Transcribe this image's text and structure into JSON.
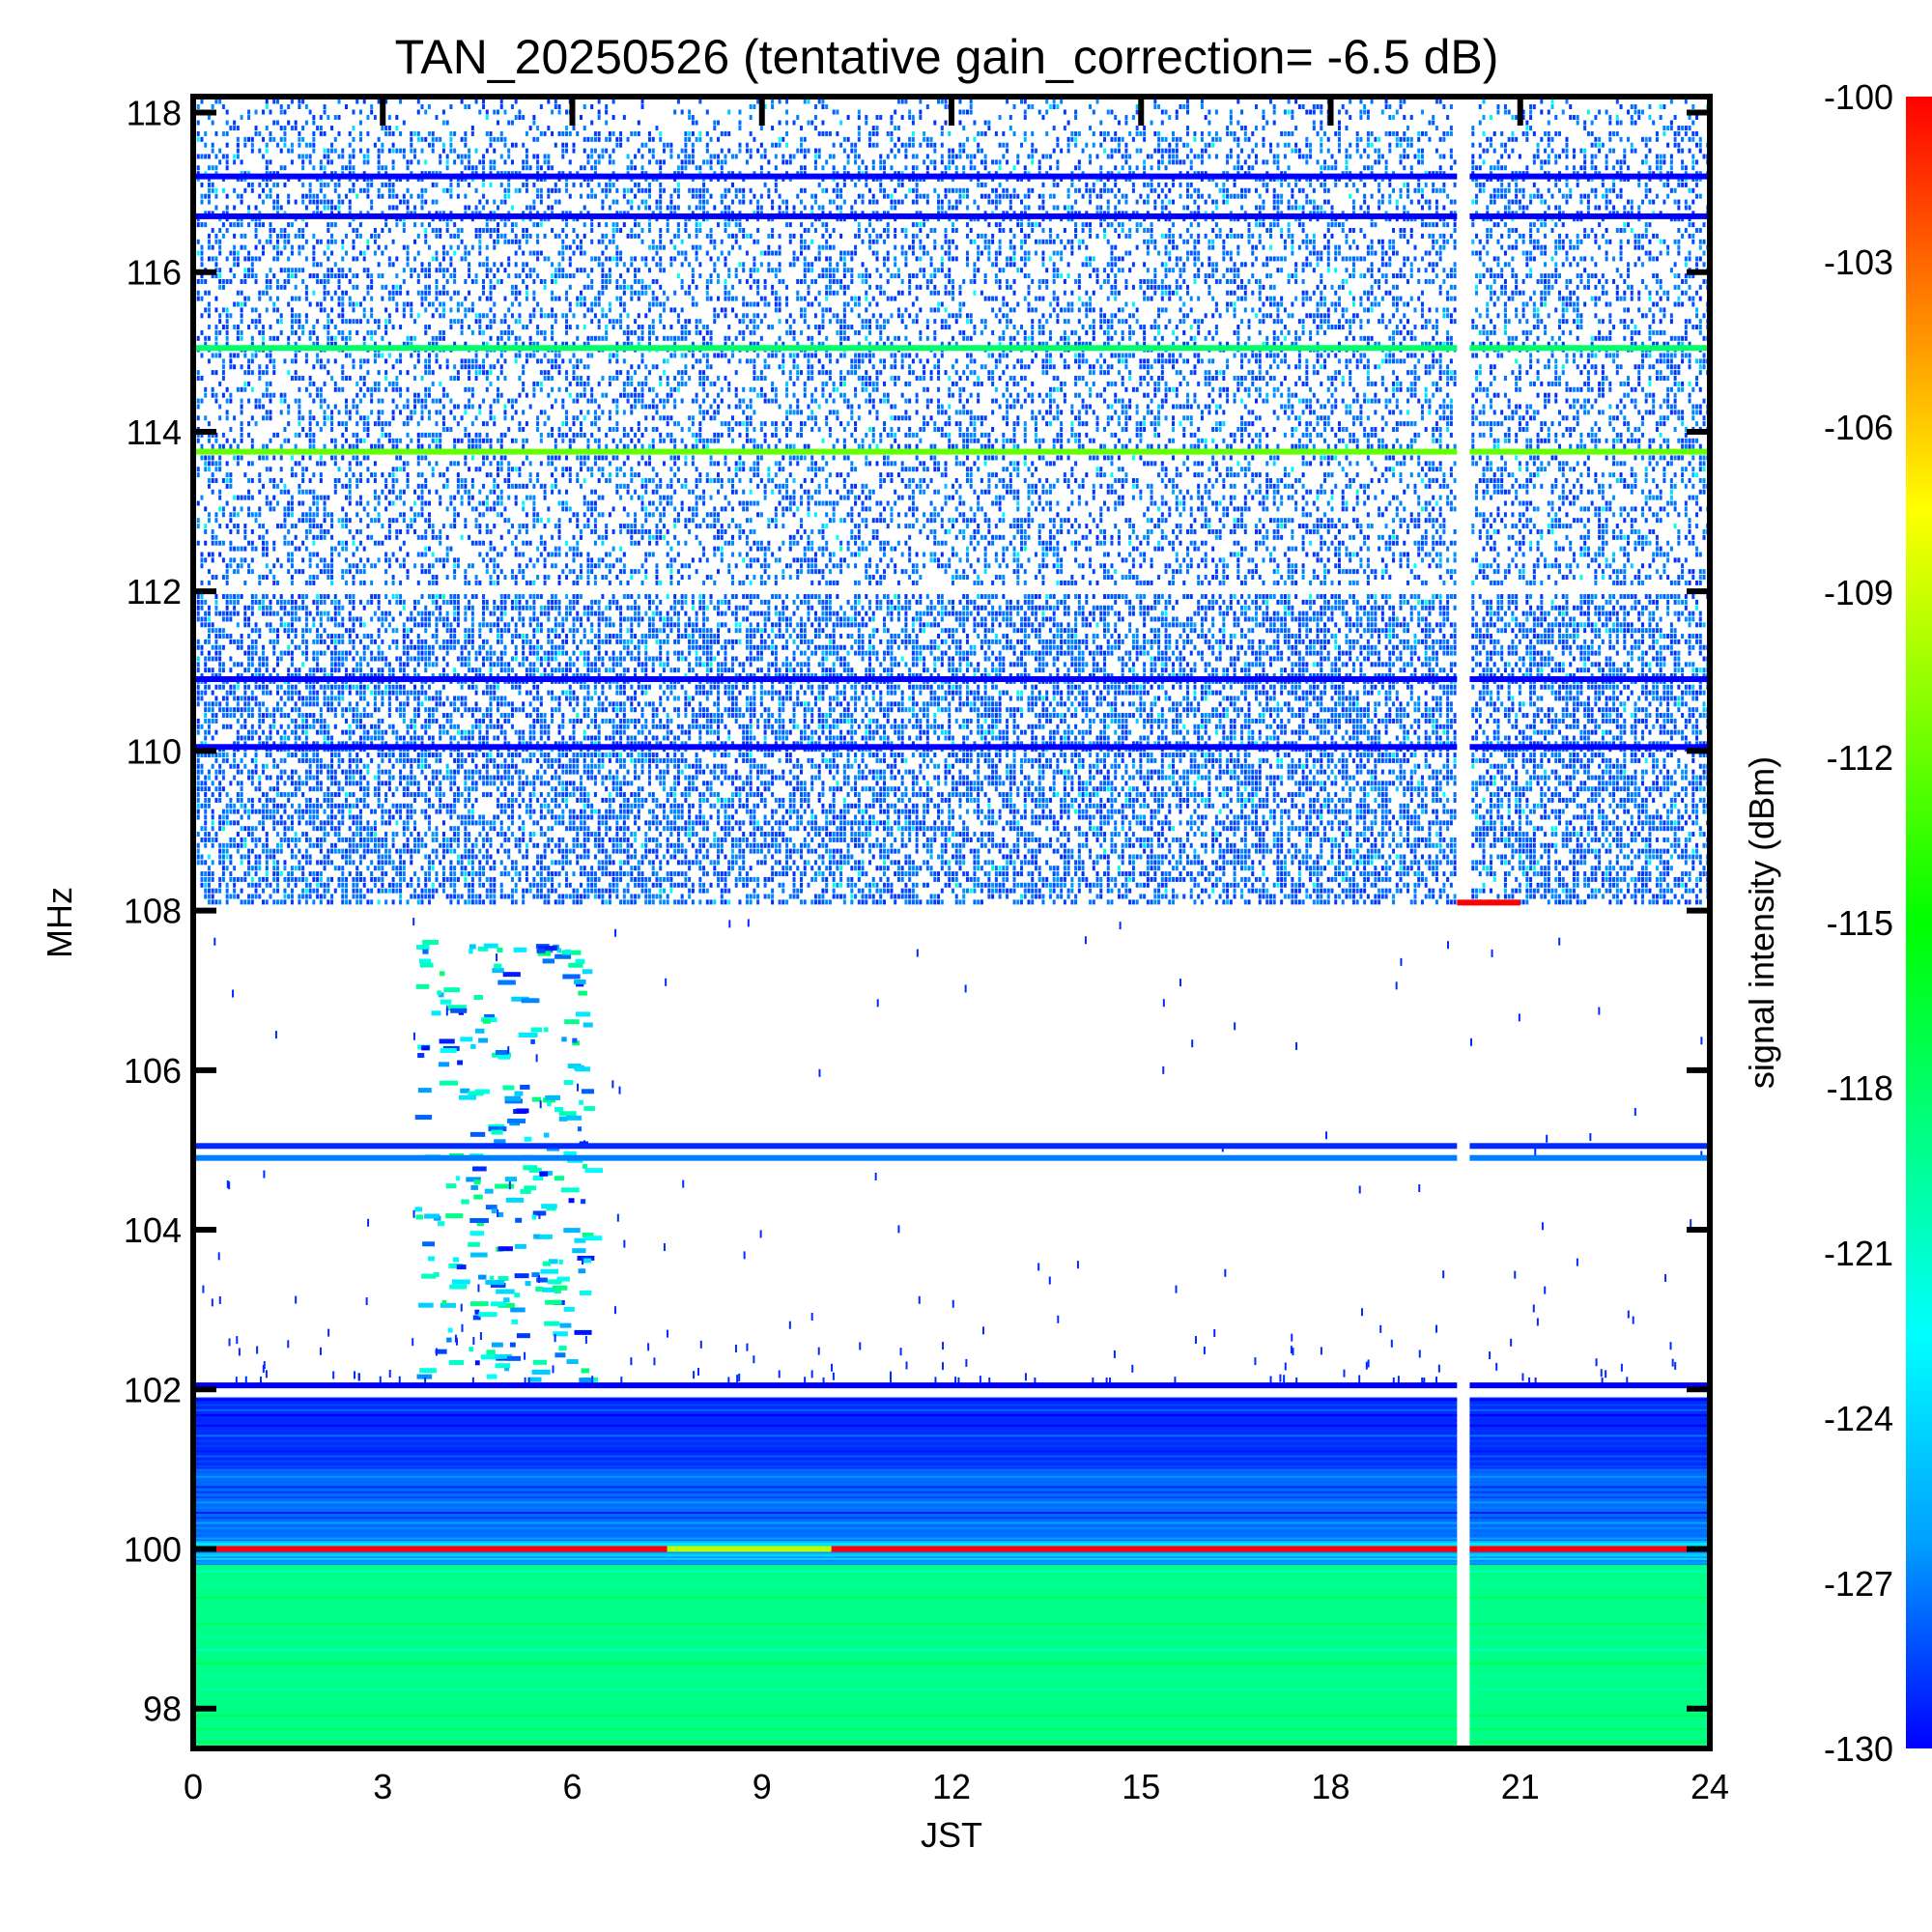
{
  "chart_data": {
    "type": "heatmap",
    "title": "TAN_20250526 (tentative gain_correction= -6.5 dB)",
    "xlabel": "JST",
    "ylabel": "MHz",
    "colorbar_label": "signal intensity (dBm)",
    "xlim": [
      0,
      24
    ],
    "ylim": [
      97.5,
      118.2
    ],
    "x_ticks": [
      0,
      3,
      6,
      9,
      12,
      15,
      18,
      21,
      24
    ],
    "y_ticks": [
      98,
      100,
      102,
      104,
      106,
      108,
      110,
      112,
      114,
      116,
      118
    ],
    "colorbar": {
      "range": [
        -130,
        -100
      ],
      "ticks": [
        -100,
        -103,
        -106,
        -109,
        -112,
        -115,
        -118,
        -121,
        -124,
        -127,
        -130
      ],
      "colormap": [
        "#0000ff",
        "#00a0ff",
        "#00ffff",
        "#00ff80",
        "#00ff00",
        "#80ff00",
        "#ffff00",
        "#ff8000",
        "#ff0000"
      ]
    },
    "data_gap": {
      "x": [
        20.0,
        20.2
      ]
    },
    "background_bands": [
      {
        "label": "band",
        "y": [
          97.5,
          99.8
        ],
        "level": -119
      },
      {
        "label": "band",
        "y": [
          99.8,
          100.1
        ],
        "level": -125
      },
      {
        "label": "band",
        "y": [
          100.1,
          101.0
        ],
        "level": -127.5
      },
      {
        "label": "band",
        "y": [
          101.0,
          101.9
        ],
        "level": -129
      }
    ],
    "noise_regions": [
      {
        "y": [
          108.1,
          112.0
        ],
        "density": 0.55,
        "level": -129
      },
      {
        "y": [
          112.1,
          117.8
        ],
        "density": 0.35,
        "level": -129
      },
      {
        "y": [
          117.8,
          118.2
        ],
        "density": 0.18,
        "level": -129
      }
    ],
    "steady_lines": [
      {
        "y": 100.0,
        "level": -100,
        "x": [
          0,
          7.5
        ]
      },
      {
        "y": 100.0,
        "level": -109.5,
        "x": [
          7.5,
          10.1
        ]
      },
      {
        "y": 100.0,
        "level": -100,
        "x": [
          10.1,
          24
        ]
      },
      {
        "y": 102.05,
        "level": -130,
        "x": [
          0,
          24
        ]
      },
      {
        "y": 105.05,
        "level": -129,
        "x": [
          0,
          24
        ]
      },
      {
        "y": 104.9,
        "level": -127,
        "x": [
          0,
          24
        ]
      },
      {
        "y": 110.05,
        "level": -130,
        "x": [
          0,
          24
        ]
      },
      {
        "y": 110.9,
        "level": -130,
        "x": [
          0,
          24
        ]
      },
      {
        "y": 113.75,
        "level": -112,
        "x": [
          0,
          24
        ]
      },
      {
        "y": 115.05,
        "level": -118,
        "x": [
          0,
          24
        ]
      },
      {
        "y": 116.7,
        "level": -130,
        "x": [
          0,
          24
        ]
      },
      {
        "y": 117.2,
        "level": -130,
        "x": [
          0,
          24
        ]
      },
      {
        "y": 108.1,
        "level": -100,
        "x": [
          20.0,
          21.0
        ]
      }
    ],
    "sporadic_cluster": {
      "x": [
        3.5,
        6.2
      ],
      "y": [
        102.1,
        107.6
      ]
    }
  }
}
